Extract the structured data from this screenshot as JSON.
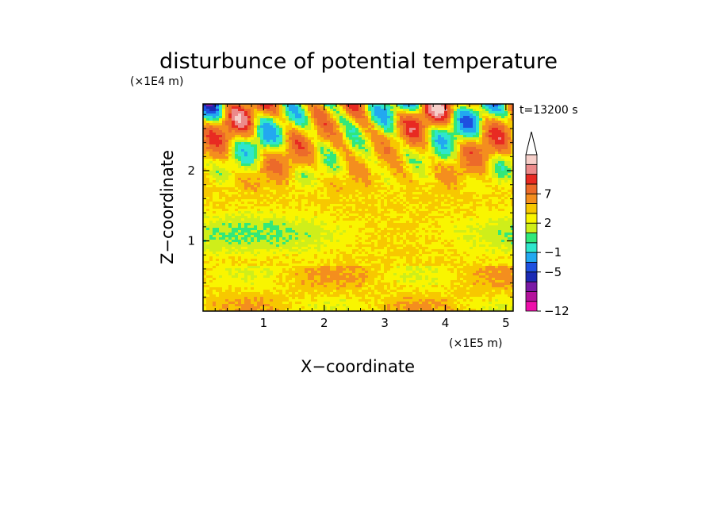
{
  "chart_data": {
    "type": "heatmap",
    "title": "disturbunce of potential temperature",
    "xlabel": "X−coordinate",
    "ylabel": "Z−coordinate",
    "x_unit": "(×1E5 m)",
    "y_unit": "(×1E4 m)",
    "time_label": "t=13200 s",
    "xlim": [
      0,
      5.12
    ],
    "ylim": [
      0,
      2.95
    ],
    "x_ticks": [
      {
        "value": 1,
        "label": "1"
      },
      {
        "value": 2,
        "label": "2"
      },
      {
        "value": 3,
        "label": "3"
      },
      {
        "value": 4,
        "label": "4"
      },
      {
        "value": 5,
        "label": "5"
      }
    ],
    "y_ticks": [
      {
        "value": 1,
        "label": "1"
      },
      {
        "value": 2,
        "label": "2"
      }
    ],
    "colorbar": {
      "extend": "max",
      "levels": [
        -12,
        -11,
        -9,
        -7,
        -5,
        -3,
        -1,
        0,
        1,
        2,
        3,
        5,
        7,
        9,
        11
      ],
      "labels": [
        {
          "value": -12,
          "label": "−12"
        },
        {
          "value": -5,
          "label": "−5"
        },
        {
          "value": -1,
          "label": "−1"
        },
        {
          "value": 2,
          "label": "2"
        },
        {
          "value": 7,
          "label": "7"
        }
      ],
      "colors": [
        "#ee10aa",
        "#b4139c",
        "#7a1aa5",
        "#1c2ab4",
        "#1e50e0",
        "#22a8f0",
        "#2ee6cc",
        "#31e87a",
        "#cfee1a",
        "#f9f500",
        "#f7c800",
        "#f48e1e",
        "#ec6a2a",
        "#e82a22",
        "#ec8a8a",
        "#f6cfc9"
      ],
      "top_cap_color": "#ffffff"
    }
  }
}
